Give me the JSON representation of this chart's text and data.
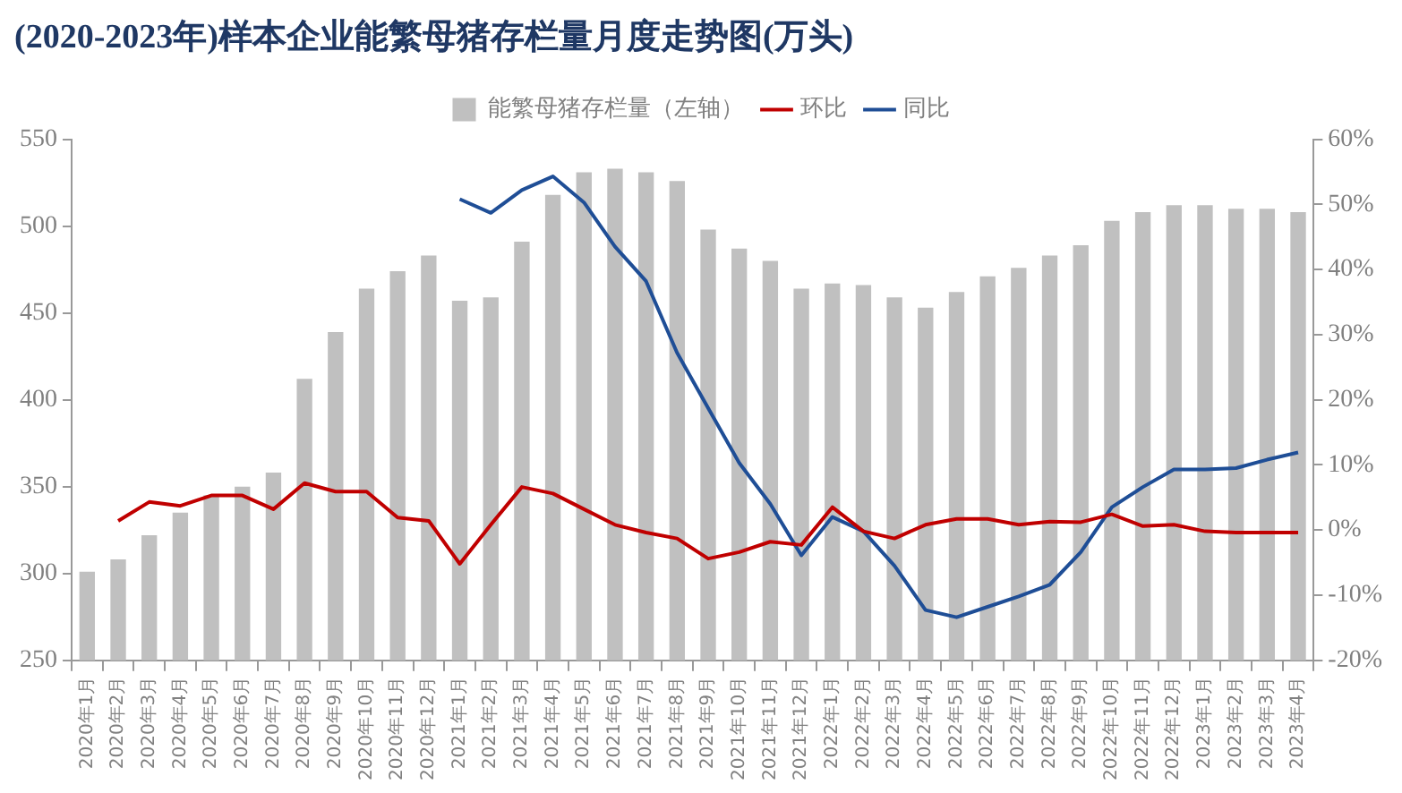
{
  "chart_data": {
    "type": "bar",
    "title": "(2020-2023年)样本企业能繁母猪存栏量月度走势图(万头)",
    "categories": [
      "2020年1月",
      "2020年2月",
      "2020年3月",
      "2020年4月",
      "2020年5月",
      "2020年6月",
      "2020年7月",
      "2020年8月",
      "2020年9月",
      "2020年10月",
      "2020年11月",
      "2020年12月",
      "2021年1月",
      "2021年2月",
      "2021年3月",
      "2021年4月",
      "2021年5月",
      "2021年6月",
      "2021年7月",
      "2021年8月",
      "2021年9月",
      "2021年10月",
      "2021年11月",
      "2021年12月",
      "2022年1月",
      "2022年2月",
      "2022年3月",
      "2022年4月",
      "2022年5月",
      "2022年6月",
      "2022年7月",
      "2022年8月",
      "2022年9月",
      "2022年10月",
      "2022年11月",
      "2022年12月",
      "2023年1月",
      "2023年2月",
      "2023年3月",
      "2023年4月"
    ],
    "series": [
      {
        "name": "能繁母猪存栏量（左轴）",
        "color": "#c0c0c0",
        "values": [
          301,
          308,
          322,
          335,
          345,
          350,
          358,
          412,
          439,
          464,
          474,
          483,
          457,
          459,
          491,
          518,
          531,
          533,
          531,
          526,
          498,
          487,
          480,
          464,
          467,
          466,
          459,
          453,
          462,
          471,
          476,
          483,
          489,
          503,
          508,
          512,
          512,
          510,
          510,
          508
        ]
      },
      {
        "name": "环比",
        "type": "line",
        "axis": "y2",
        "color": "#c00000",
        "values": [
          null,
          1.4,
          4.3,
          3.7,
          5.3,
          5.3,
          3.2,
          7.2,
          5.9,
          5.9,
          1.9,
          1.4,
          -5.2,
          0.8,
          6.6,
          5.6,
          3.2,
          0.8,
          -0.4,
          -1.3,
          -4.4,
          -3.4,
          -1.8,
          -2.3,
          3.5,
          -0.2,
          -1.3,
          0.8,
          1.7,
          1.7,
          0.8,
          1.3,
          1.2,
          2.4,
          0.6,
          0.8,
          -0.2,
          -0.4,
          -0.4,
          -0.4
        ]
      },
      {
        "name": "同比",
        "type": "line",
        "axis": "y2",
        "color": "#1f4e96",
        "values": [
          null,
          null,
          null,
          null,
          null,
          null,
          null,
          null,
          null,
          null,
          null,
          null,
          50.8,
          48.7,
          52.2,
          54.3,
          50.3,
          43.5,
          38.2,
          27.2,
          18.7,
          10.3,
          4.0,
          -3.9,
          2.0,
          -0.2,
          -5.5,
          -12.3,
          -13.4,
          -11.8,
          -10.2,
          -8.4,
          -3.4,
          3.5,
          6.6,
          9.3,
          9.3,
          9.5,
          10.8,
          11.9
        ]
      }
    ],
    "ylim": [
      250,
      550
    ],
    "yticks": [
      250,
      300,
      350,
      400,
      450,
      500,
      550
    ],
    "y2lim": [
      -20,
      60
    ],
    "y2ticks": [
      {
        "value": -20,
        "label": "-20%"
      },
      {
        "value": -10,
        "label": "-10%"
      },
      {
        "value": 0,
        "label": "0%"
      },
      {
        "value": 10,
        "label": "10%"
      },
      {
        "value": 20,
        "label": "20%"
      },
      {
        "value": 30,
        "label": "30%"
      },
      {
        "value": 40,
        "label": "40%"
      },
      {
        "value": 50,
        "label": "50%"
      },
      {
        "value": 60,
        "label": "60%"
      }
    ],
    "grid": false,
    "legend": "top",
    "marker": "none",
    "line_style": "solid"
  }
}
